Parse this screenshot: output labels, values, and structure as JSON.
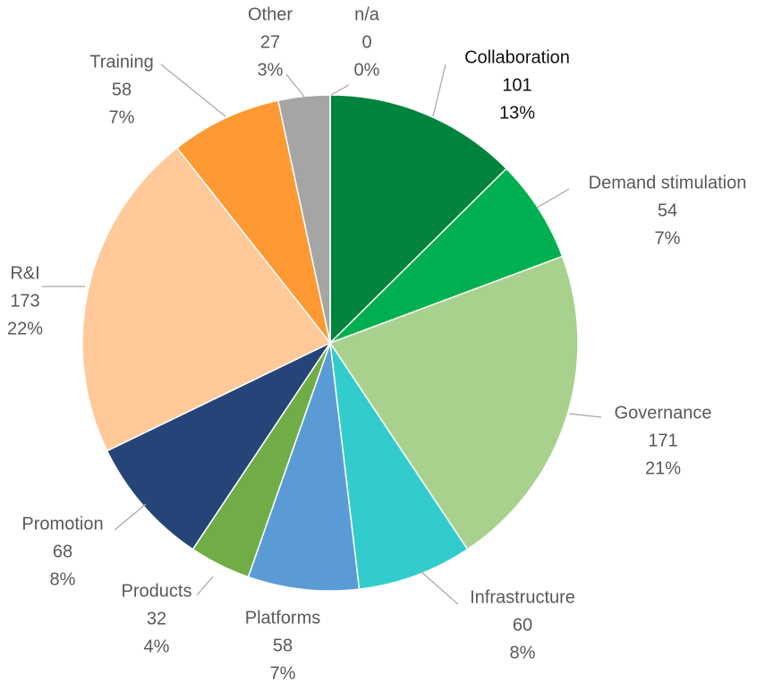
{
  "chart_data": {
    "type": "pie",
    "categories": [
      "Collaboration",
      "Demand stimulation",
      "Governance",
      "Infrastructure",
      "Platforms",
      "Products",
      "Promotion",
      "R&I",
      "Training",
      "Other",
      "n/a"
    ],
    "values": [
      101,
      54,
      171,
      60,
      58,
      32,
      68,
      173,
      58,
      27,
      0
    ],
    "percent_labels": [
      "13%",
      "7%",
      "21%",
      "8%",
      "7%",
      "4%",
      "8%",
      "22%",
      "7%",
      "3%",
      "0%"
    ],
    "colors": [
      "#00843d",
      "#00b050",
      "#a9d18e",
      "#33cccc",
      "#5b9bd5",
      "#70ad47",
      "#264478",
      "#ffc999",
      "#ff9933",
      "#a5a5a5",
      "#7f7f7f"
    ]
  }
}
